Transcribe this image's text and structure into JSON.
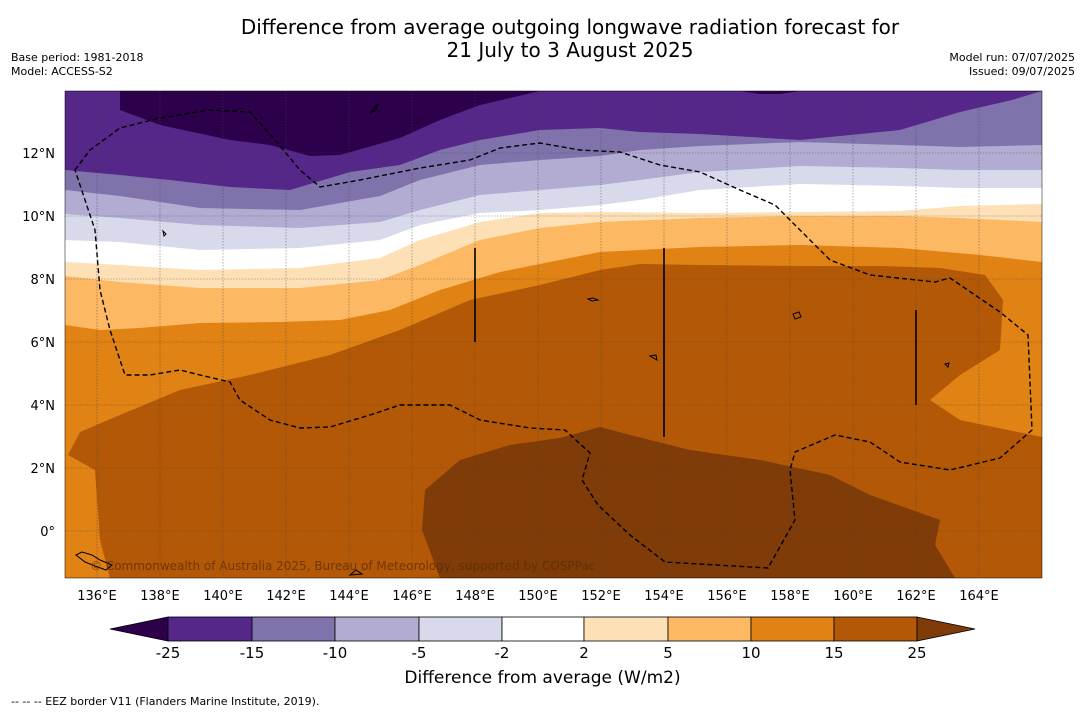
{
  "title": {
    "line1": "Difference from average outgoing longwave radiation forecast for",
    "line2": "21 July to 3 August 2025"
  },
  "meta": {
    "base_period": "Base period: 1981-2018",
    "model": "Model: ACCESS-S2",
    "model_run": "Model run: 07/07/2025",
    "issued": "Issued: 09/07/2025"
  },
  "map": {
    "lat_labels": [
      "12°N",
      "10°N",
      "8°N",
      "6°N",
      "4°N",
      "2°N",
      "0°"
    ],
    "lon_labels": [
      "136°E",
      "138°E",
      "140°E",
      "142°E",
      "144°E",
      "146°E",
      "148°E",
      "150°E",
      "152°E",
      "154°E",
      "156°E",
      "158°E",
      "160°E",
      "162°E",
      "164°E"
    ],
    "copyright": "© Commonwealth of Australia 2025, Bureau of Meteorology, supported by COSPPac"
  },
  "colorbar": {
    "ticks": [
      "-25",
      "-15",
      "-10",
      "-5",
      "-2",
      "2",
      "5",
      "10",
      "15",
      "25"
    ],
    "title": "Difference from average (W/m2)",
    "colors": [
      "#2d004b",
      "#542788",
      "#8073ac",
      "#b2abd2",
      "#d8daeb",
      "#ffffff",
      "#fee0b6",
      "#fdb863",
      "#e08214",
      "#b35806",
      "#7f3b08"
    ]
  },
  "footnote": "-- -- -- EEZ border V11 (Flanders Marine Institute, 2019)."
}
